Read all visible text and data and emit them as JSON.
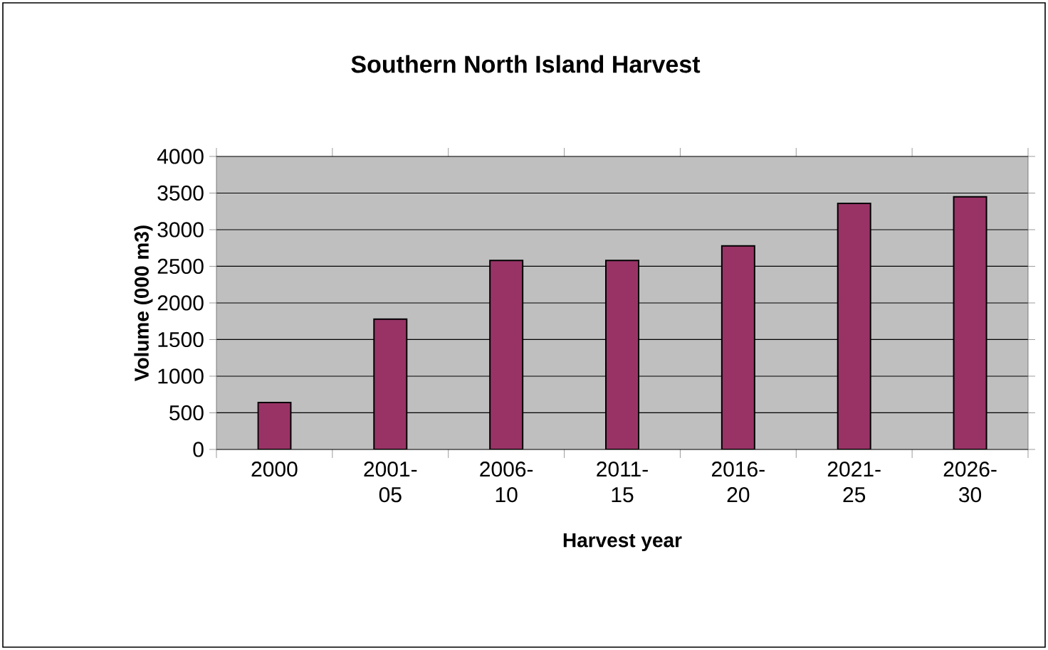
{
  "chart_data": {
    "type": "bar",
    "title": "Southern North Island Harvest",
    "xlabel": "Harvest year",
    "ylabel": "Volume (000 m3)",
    "categories": [
      "2000",
      "2001-05",
      "2006-10",
      "2011-15",
      "2016-20",
      "2021-25",
      "2026-30"
    ],
    "values": [
      640,
      1780,
      2580,
      2580,
      2780,
      3360,
      3450
    ],
    "color": "#993366",
    "ylim": [
      0,
      4000
    ],
    "yticks": [
      0,
      500,
      1000,
      1500,
      2000,
      2500,
      3000,
      3500,
      4000
    ],
    "grid": "y"
  }
}
